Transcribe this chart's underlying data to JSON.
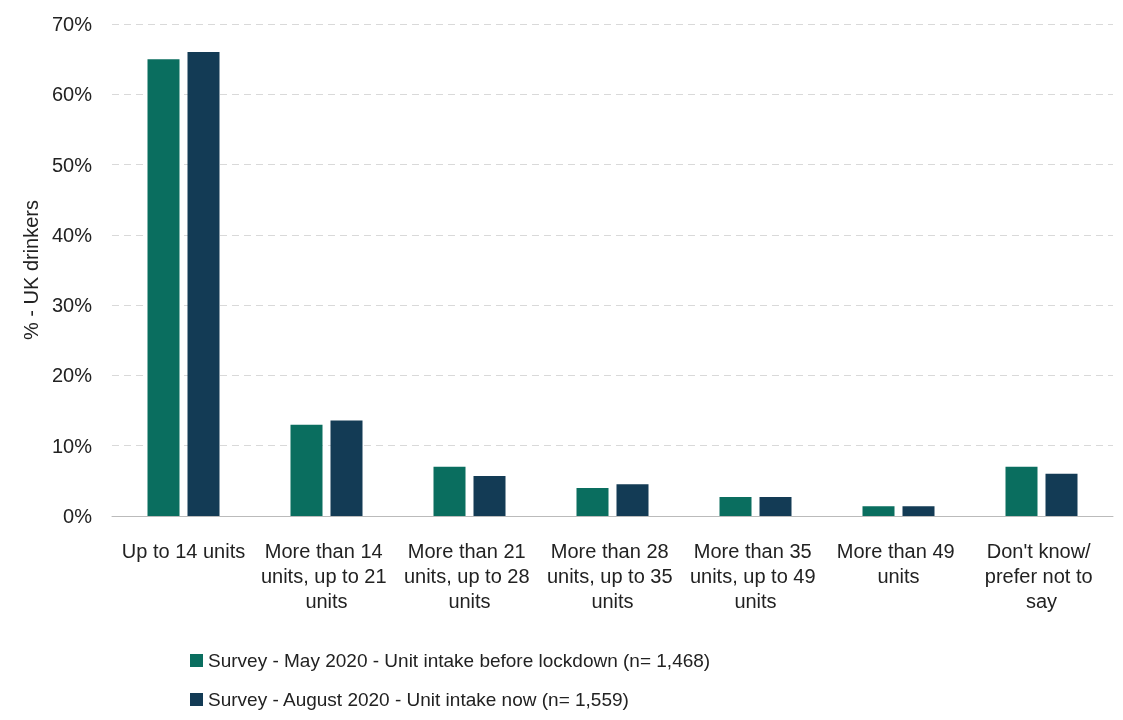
{
  "chart_data": {
    "type": "bar",
    "ylabel": "% - UK drinkers",
    "categories": [
      "Up to 14 units",
      "More than 14 units, up to 21 units",
      "More than 21 units, up to 28 units",
      "More than 28 units, up to 35 units",
      "More than 35 units, up to 49 units",
      "More than 49 units",
      "Don't know/ prefer not to say"
    ],
    "series": [
      {
        "name": "Survey - May 2020 - Unit intake before lockdown (n= 1,468)",
        "color": "#0a6e5f",
        "values": [
          65,
          13,
          7,
          4,
          2.7,
          1.4,
          7
        ]
      },
      {
        "name": "Survey - August 2020 - Unit intake now (n= 1,559)",
        "color": "#133b55",
        "values": [
          66,
          13.6,
          5.7,
          4.5,
          2.7,
          1.4,
          6
        ]
      }
    ],
    "ylim": [
      0,
      70
    ],
    "yticks": [
      {
        "value": 0,
        "label": "0%"
      },
      {
        "value": 10,
        "label": "10%"
      },
      {
        "value": 20,
        "label": "20%"
      },
      {
        "value": 30,
        "label": "30%"
      },
      {
        "value": 40,
        "label": "40%"
      },
      {
        "value": 50,
        "label": "50%"
      },
      {
        "value": 60,
        "label": "60%"
      },
      {
        "value": 70,
        "label": "70%"
      }
    ],
    "grid": "y",
    "legend": "bottom"
  }
}
